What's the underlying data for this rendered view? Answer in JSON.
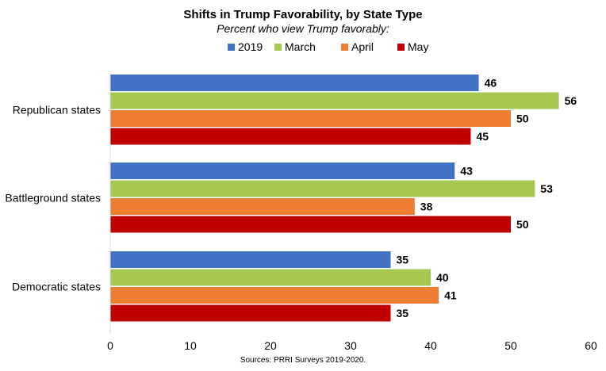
{
  "chart_data": {
    "type": "bar",
    "orientation": "horizontal",
    "title": "Shifts in Trump Favorability, by State Type",
    "subtitle": "Percent who view Trump favorably:",
    "source": "Sources: PRRI Surveys 2019-2020.",
    "categories": [
      "Republican states",
      "Battleground states",
      "Democratic states"
    ],
    "series": [
      {
        "name": "2019",
        "color": "#4472C4",
        "values": [
          46,
          43,
          35
        ]
      },
      {
        "name": "March",
        "color": "#A5C851",
        "values": [
          56,
          53,
          40
        ]
      },
      {
        "name": "April",
        "color": "#ED7D31",
        "values": [
          50,
          38,
          41
        ]
      },
      {
        "name": "May",
        "color": "#C00000",
        "values": [
          45,
          50,
          35
        ]
      }
    ],
    "xlim": [
      0,
      60
    ],
    "xticks": [
      0,
      10,
      20,
      30,
      40,
      50,
      60
    ],
    "legend_position": "top-center",
    "grid": false,
    "data_labels": true
  }
}
